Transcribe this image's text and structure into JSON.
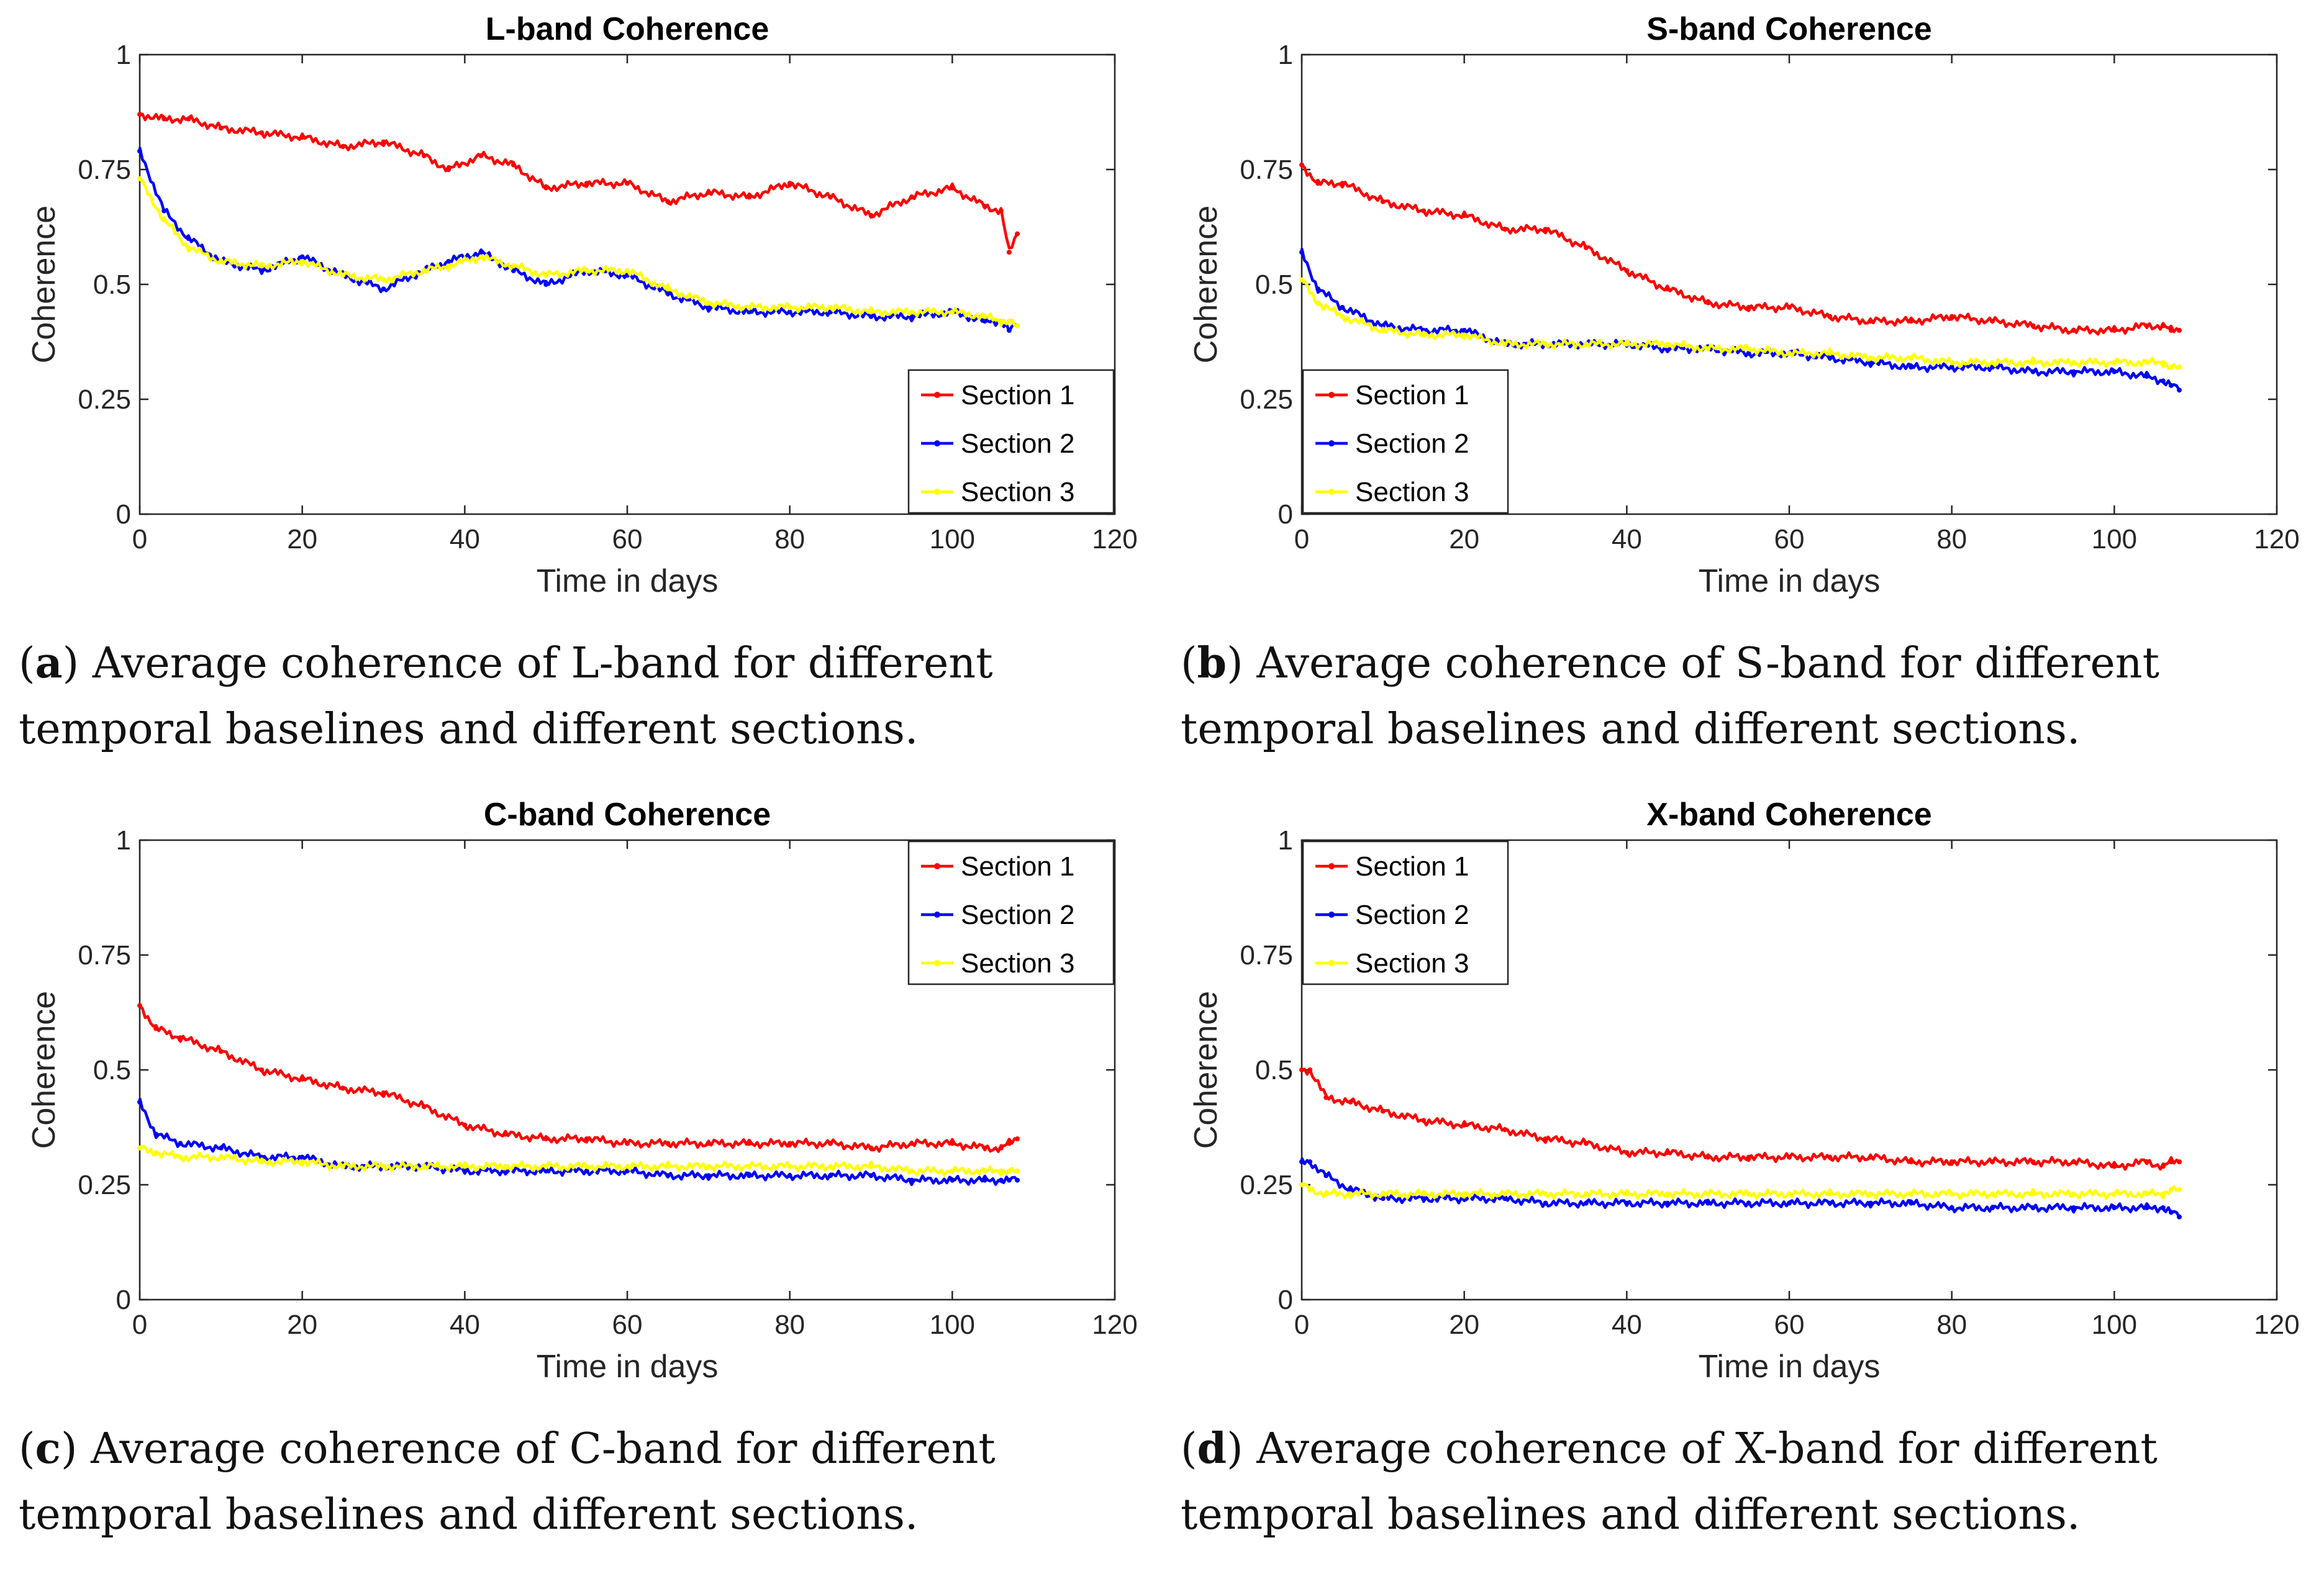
{
  "chart_data": [
    {
      "type": "line",
      "title": "L-band Coherence",
      "xlabel": "Time in days",
      "ylabel": "Coherence",
      "xlim": [
        0,
        120
      ],
      "ylim": [
        0,
        1
      ],
      "xticks": [
        "0",
        "20",
        "40",
        "60",
        "80",
        "100",
        "120"
      ],
      "yticks": [
        "0",
        "0.25",
        "0.5",
        "0.75",
        "1"
      ],
      "legend_position": "bottom-right",
      "x": [
        0,
        3,
        6,
        10,
        15,
        20,
        25,
        30,
        35,
        38,
        42,
        46,
        50,
        55,
        60,
        65,
        70,
        75,
        80,
        85,
        90,
        95,
        100,
        104,
        106,
        107,
        108
      ],
      "series": [
        {
          "name": "Section 1",
          "color": "#ff0000",
          "values": [
            0.87,
            0.86,
            0.86,
            0.84,
            0.83,
            0.82,
            0.8,
            0.81,
            0.78,
            0.75,
            0.78,
            0.76,
            0.71,
            0.72,
            0.72,
            0.68,
            0.7,
            0.69,
            0.72,
            0.69,
            0.65,
            0.69,
            0.71,
            0.67,
            0.66,
            0.57,
            0.61
          ]
        },
        {
          "name": "Section 2",
          "color": "#0000ff",
          "values": [
            0.79,
            0.66,
            0.6,
            0.55,
            0.53,
            0.56,
            0.52,
            0.49,
            0.53,
            0.55,
            0.57,
            0.53,
            0.5,
            0.53,
            0.52,
            0.48,
            0.45,
            0.44,
            0.44,
            0.44,
            0.43,
            0.43,
            0.44,
            0.42,
            0.42,
            0.4,
            0.41
          ]
        },
        {
          "name": "Section 3",
          "color": "#ffff00",
          "values": [
            0.73,
            0.64,
            0.58,
            0.55,
            0.54,
            0.55,
            0.52,
            0.51,
            0.53,
            0.54,
            0.56,
            0.54,
            0.52,
            0.53,
            0.53,
            0.49,
            0.46,
            0.45,
            0.45,
            0.45,
            0.44,
            0.44,
            0.44,
            0.43,
            0.42,
            0.42,
            0.41
          ]
        }
      ]
    },
    {
      "type": "line",
      "title": "S-band Coherence",
      "xlabel": "Time in days",
      "ylabel": "Coherence",
      "xlim": [
        0,
        120
      ],
      "ylim": [
        0,
        1
      ],
      "xticks": [
        "0",
        "20",
        "40",
        "60",
        "80",
        "100",
        "120"
      ],
      "yticks": [
        "0",
        "0.25",
        "0.5",
        "0.75",
        "1"
      ],
      "legend_position": "bottom-left",
      "x": [
        0,
        2,
        5,
        10,
        15,
        20,
        25,
        30,
        35,
        40,
        45,
        50,
        55,
        60,
        65,
        70,
        75,
        80,
        85,
        90,
        95,
        100,
        104,
        106,
        107,
        108
      ],
      "series": [
        {
          "name": "Section 1",
          "color": "#ff0000",
          "values": [
            0.76,
            0.72,
            0.72,
            0.68,
            0.66,
            0.65,
            0.62,
            0.62,
            0.58,
            0.53,
            0.49,
            0.46,
            0.45,
            0.45,
            0.43,
            0.42,
            0.42,
            0.43,
            0.42,
            0.41,
            0.4,
            0.4,
            0.41,
            0.41,
            0.4,
            0.4
          ]
        },
        {
          "name": "Section 2",
          "color": "#0000ff",
          "values": [
            0.57,
            0.49,
            0.45,
            0.41,
            0.4,
            0.4,
            0.37,
            0.37,
            0.37,
            0.37,
            0.36,
            0.36,
            0.35,
            0.35,
            0.34,
            0.33,
            0.32,
            0.32,
            0.32,
            0.31,
            0.31,
            0.31,
            0.3,
            0.29,
            0.28,
            0.27
          ]
        },
        {
          "name": "Section 3",
          "color": "#ffff00",
          "values": [
            0.51,
            0.46,
            0.43,
            0.4,
            0.39,
            0.39,
            0.37,
            0.37,
            0.37,
            0.37,
            0.37,
            0.36,
            0.36,
            0.35,
            0.35,
            0.34,
            0.34,
            0.33,
            0.33,
            0.33,
            0.33,
            0.33,
            0.33,
            0.33,
            0.32,
            0.32
          ]
        }
      ]
    },
    {
      "type": "line",
      "title": "C-band Coherence",
      "xlabel": "Time in days",
      "ylabel": "Coherence",
      "xlim": [
        0,
        120
      ],
      "ylim": [
        0,
        1
      ],
      "xticks": [
        "0",
        "20",
        "40",
        "60",
        "80",
        "100",
        "120"
      ],
      "yticks": [
        "0",
        "0.25",
        "0.5",
        "0.75",
        "1"
      ],
      "legend_position": "top-right",
      "x": [
        0,
        2,
        5,
        10,
        15,
        20,
        25,
        30,
        35,
        40,
        45,
        50,
        55,
        60,
        65,
        70,
        75,
        80,
        85,
        90,
        95,
        100,
        104,
        106,
        107,
        108
      ],
      "series": [
        {
          "name": "Section 1",
          "color": "#ff0000",
          "values": [
            0.64,
            0.59,
            0.57,
            0.54,
            0.5,
            0.48,
            0.46,
            0.45,
            0.42,
            0.38,
            0.36,
            0.35,
            0.35,
            0.34,
            0.34,
            0.34,
            0.34,
            0.34,
            0.34,
            0.33,
            0.34,
            0.34,
            0.33,
            0.33,
            0.34,
            0.35
          ]
        },
        {
          "name": "Section 2",
          "color": "#0000ff",
          "values": [
            0.43,
            0.36,
            0.34,
            0.33,
            0.31,
            0.31,
            0.29,
            0.29,
            0.29,
            0.28,
            0.28,
            0.28,
            0.28,
            0.28,
            0.27,
            0.27,
            0.27,
            0.27,
            0.27,
            0.27,
            0.26,
            0.26,
            0.26,
            0.26,
            0.26,
            0.26
          ]
        },
        {
          "name": "Section 3",
          "color": "#ffff00",
          "values": [
            0.33,
            0.32,
            0.31,
            0.31,
            0.3,
            0.3,
            0.29,
            0.29,
            0.29,
            0.29,
            0.29,
            0.29,
            0.29,
            0.29,
            0.29,
            0.29,
            0.29,
            0.29,
            0.29,
            0.29,
            0.28,
            0.28,
            0.28,
            0.28,
            0.28,
            0.28
          ]
        }
      ]
    },
    {
      "type": "line",
      "title": "X-band Coherence",
      "xlabel": "Time in days",
      "ylabel": "Coherence",
      "xlim": [
        0,
        120
      ],
      "ylim": [
        0,
        1
      ],
      "xticks": [
        "0",
        "20",
        "40",
        "60",
        "80",
        "100",
        "120"
      ],
      "yticks": [
        "0",
        "0.25",
        "0.5",
        "0.75",
        "1"
      ],
      "legend_position": "top-left",
      "x": [
        0,
        1,
        3,
        6,
        10,
        15,
        20,
        25,
        30,
        35,
        40,
        45,
        50,
        55,
        60,
        65,
        70,
        75,
        80,
        85,
        90,
        95,
        100,
        104,
        106,
        107,
        108
      ],
      "series": [
        {
          "name": "Section 1",
          "color": "#ff0000",
          "values": [
            0.5,
            0.5,
            0.44,
            0.43,
            0.41,
            0.39,
            0.38,
            0.37,
            0.35,
            0.34,
            0.32,
            0.32,
            0.31,
            0.31,
            0.31,
            0.31,
            0.31,
            0.3,
            0.3,
            0.3,
            0.3,
            0.3,
            0.29,
            0.3,
            0.29,
            0.3,
            0.3
          ]
        },
        {
          "name": "Section 2",
          "color": "#0000ff",
          "values": [
            0.3,
            0.3,
            0.27,
            0.24,
            0.22,
            0.22,
            0.22,
            0.22,
            0.21,
            0.21,
            0.21,
            0.21,
            0.21,
            0.21,
            0.21,
            0.21,
            0.21,
            0.21,
            0.2,
            0.2,
            0.2,
            0.2,
            0.2,
            0.2,
            0.2,
            0.19,
            0.18
          ]
        },
        {
          "name": "Section 3",
          "color": "#ffff00",
          "values": [
            0.25,
            0.24,
            0.23,
            0.23,
            0.23,
            0.23,
            0.23,
            0.23,
            0.23,
            0.23,
            0.23,
            0.23,
            0.23,
            0.23,
            0.23,
            0.23,
            0.23,
            0.23,
            0.23,
            0.23,
            0.23,
            0.23,
            0.23,
            0.23,
            0.23,
            0.24,
            0.24
          ]
        }
      ]
    }
  ],
  "captions": [
    {
      "letter": "a",
      "text": " Average coherence of L-band for different temporal baselines and different sections."
    },
    {
      "letter": "b",
      "text": " Average coherence of S-band for different temporal baselines and different sections."
    },
    {
      "letter": "c",
      "text": " Average coherence of C-band for different temporal baselines and different sections."
    },
    {
      "letter": "d",
      "text": " Average coherence of X-band for different temporal baselines and different sections."
    }
  ]
}
